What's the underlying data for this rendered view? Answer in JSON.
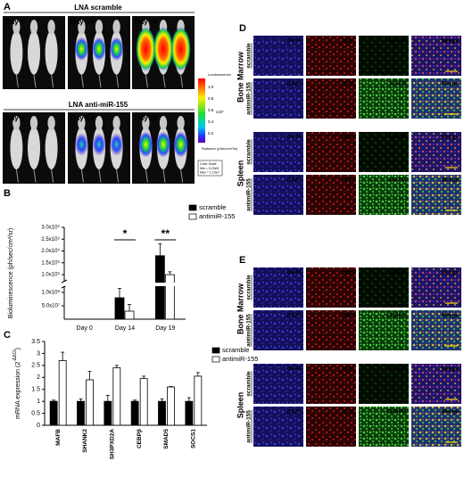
{
  "figure": {
    "panel_a": {
      "label": "A",
      "groups": [
        {
          "title": "LNA scramble",
          "days": [
            "Day 0",
            "Day 14",
            "Day 19"
          ]
        },
        {
          "title": "LNA anti-miR-155",
          "days": [
            "Day 0",
            "Day 14",
            "Day 19"
          ]
        }
      ],
      "colorbar": {
        "title": "Luminescence",
        "ticks": [
          "1.0",
          "0.8",
          "0.6",
          "0.4",
          "0.2"
        ],
        "exponent": "x10⁷",
        "unit": "Radiance (p/sec/cm²/sr)"
      },
      "color_scale": [
        "Color Scale",
        "Min = 5.23e5",
        "Max = 1.10e7"
      ]
    },
    "panel_d": {
      "label": "D",
      "columns": [
        "DAPI",
        "WM",
        "MAFB",
        "Merge"
      ],
      "groups": [
        {
          "name": "Bone Marrow",
          "rows": [
            "scramble",
            "antimiR-155"
          ]
        },
        {
          "name": "Spleen",
          "rows": [
            "scramble",
            "antimiR-155"
          ]
        }
      ]
    },
    "panel_e": {
      "label": "E",
      "columns": [
        "DAPI",
        "WM",
        "CEBPβ",
        "Merge"
      ],
      "groups": [
        {
          "name": "Bone Marrow",
          "rows": [
            "scramble",
            "antimiR-155"
          ]
        },
        {
          "name": "Spleen",
          "rows": [
            "scramble",
            "antimiR-155"
          ]
        }
      ]
    }
  },
  "chart_data": [
    {
      "type": "bar",
      "panel_label": "B",
      "y_label": "Bioluminescence (ph/sec/cm²/sr)",
      "categories": [
        "Day 0",
        "Day 14",
        "Day 19"
      ],
      "series": [
        {
          "name": "scramble",
          "color": "#000000",
          "values": [
            0,
            80000000,
            1800000000
          ],
          "errors": [
            0,
            35000000,
            500000000
          ]
        },
        {
          "name": "antimiR-155",
          "color": "#ffffff",
          "values": [
            0,
            30000000,
            1000000000
          ],
          "errors": [
            0,
            25000000,
            120000000
          ]
        }
      ],
      "significance": [
        null,
        "*",
        "**"
      ],
      "ylim_segments": [
        [
          0,
          120000000
        ],
        [
          700000000,
          3000000000
        ]
      ],
      "yticks": [
        {
          "value": 50000000,
          "label": "5.0x10⁷"
        },
        {
          "value": 100000000,
          "label": "1.0x10⁸"
        },
        {
          "value": 1000000000,
          "label": "1.0x10⁹"
        },
        {
          "value": 1500000000,
          "label": "1.5x10⁹"
        },
        {
          "value": 2000000000,
          "label": "2.0x10⁹"
        },
        {
          "value": 2500000000,
          "label": "2.5x10⁹"
        },
        {
          "value": 3000000000,
          "label": "3.0x10⁹"
        }
      ],
      "legend": "upper right"
    },
    {
      "type": "bar",
      "panel_label": "C",
      "y_label": "mRNA expression (2",
      "y_label_sup": "-ΔΔCt",
      "y_label_end": ")",
      "categories": [
        "MAFB",
        "SHANK2",
        "SH3PXD2A",
        "CEBPβ",
        "SMAD5",
        "SOCS1"
      ],
      "series": [
        {
          "name": "scramble",
          "color": "#000000",
          "values": [
            1,
            1,
            1,
            1,
            1,
            1
          ],
          "errors": [
            0.05,
            0.1,
            0.25,
            0.05,
            0.1,
            0.15
          ]
        },
        {
          "name": "antimiR-155",
          "color": "#ffffff",
          "values": [
            2.7,
            1.9,
            2.4,
            1.95,
            1.6,
            2.05
          ],
          "errors": [
            0.35,
            0.35,
            0.1,
            0.1,
            0.02,
            0.15
          ]
        }
      ],
      "ylim": [
        0,
        3.5
      ],
      "yticks": [
        0,
        0.5,
        1,
        1.5,
        2,
        2.5,
        3,
        3.5
      ],
      "legend": "upper right"
    }
  ]
}
